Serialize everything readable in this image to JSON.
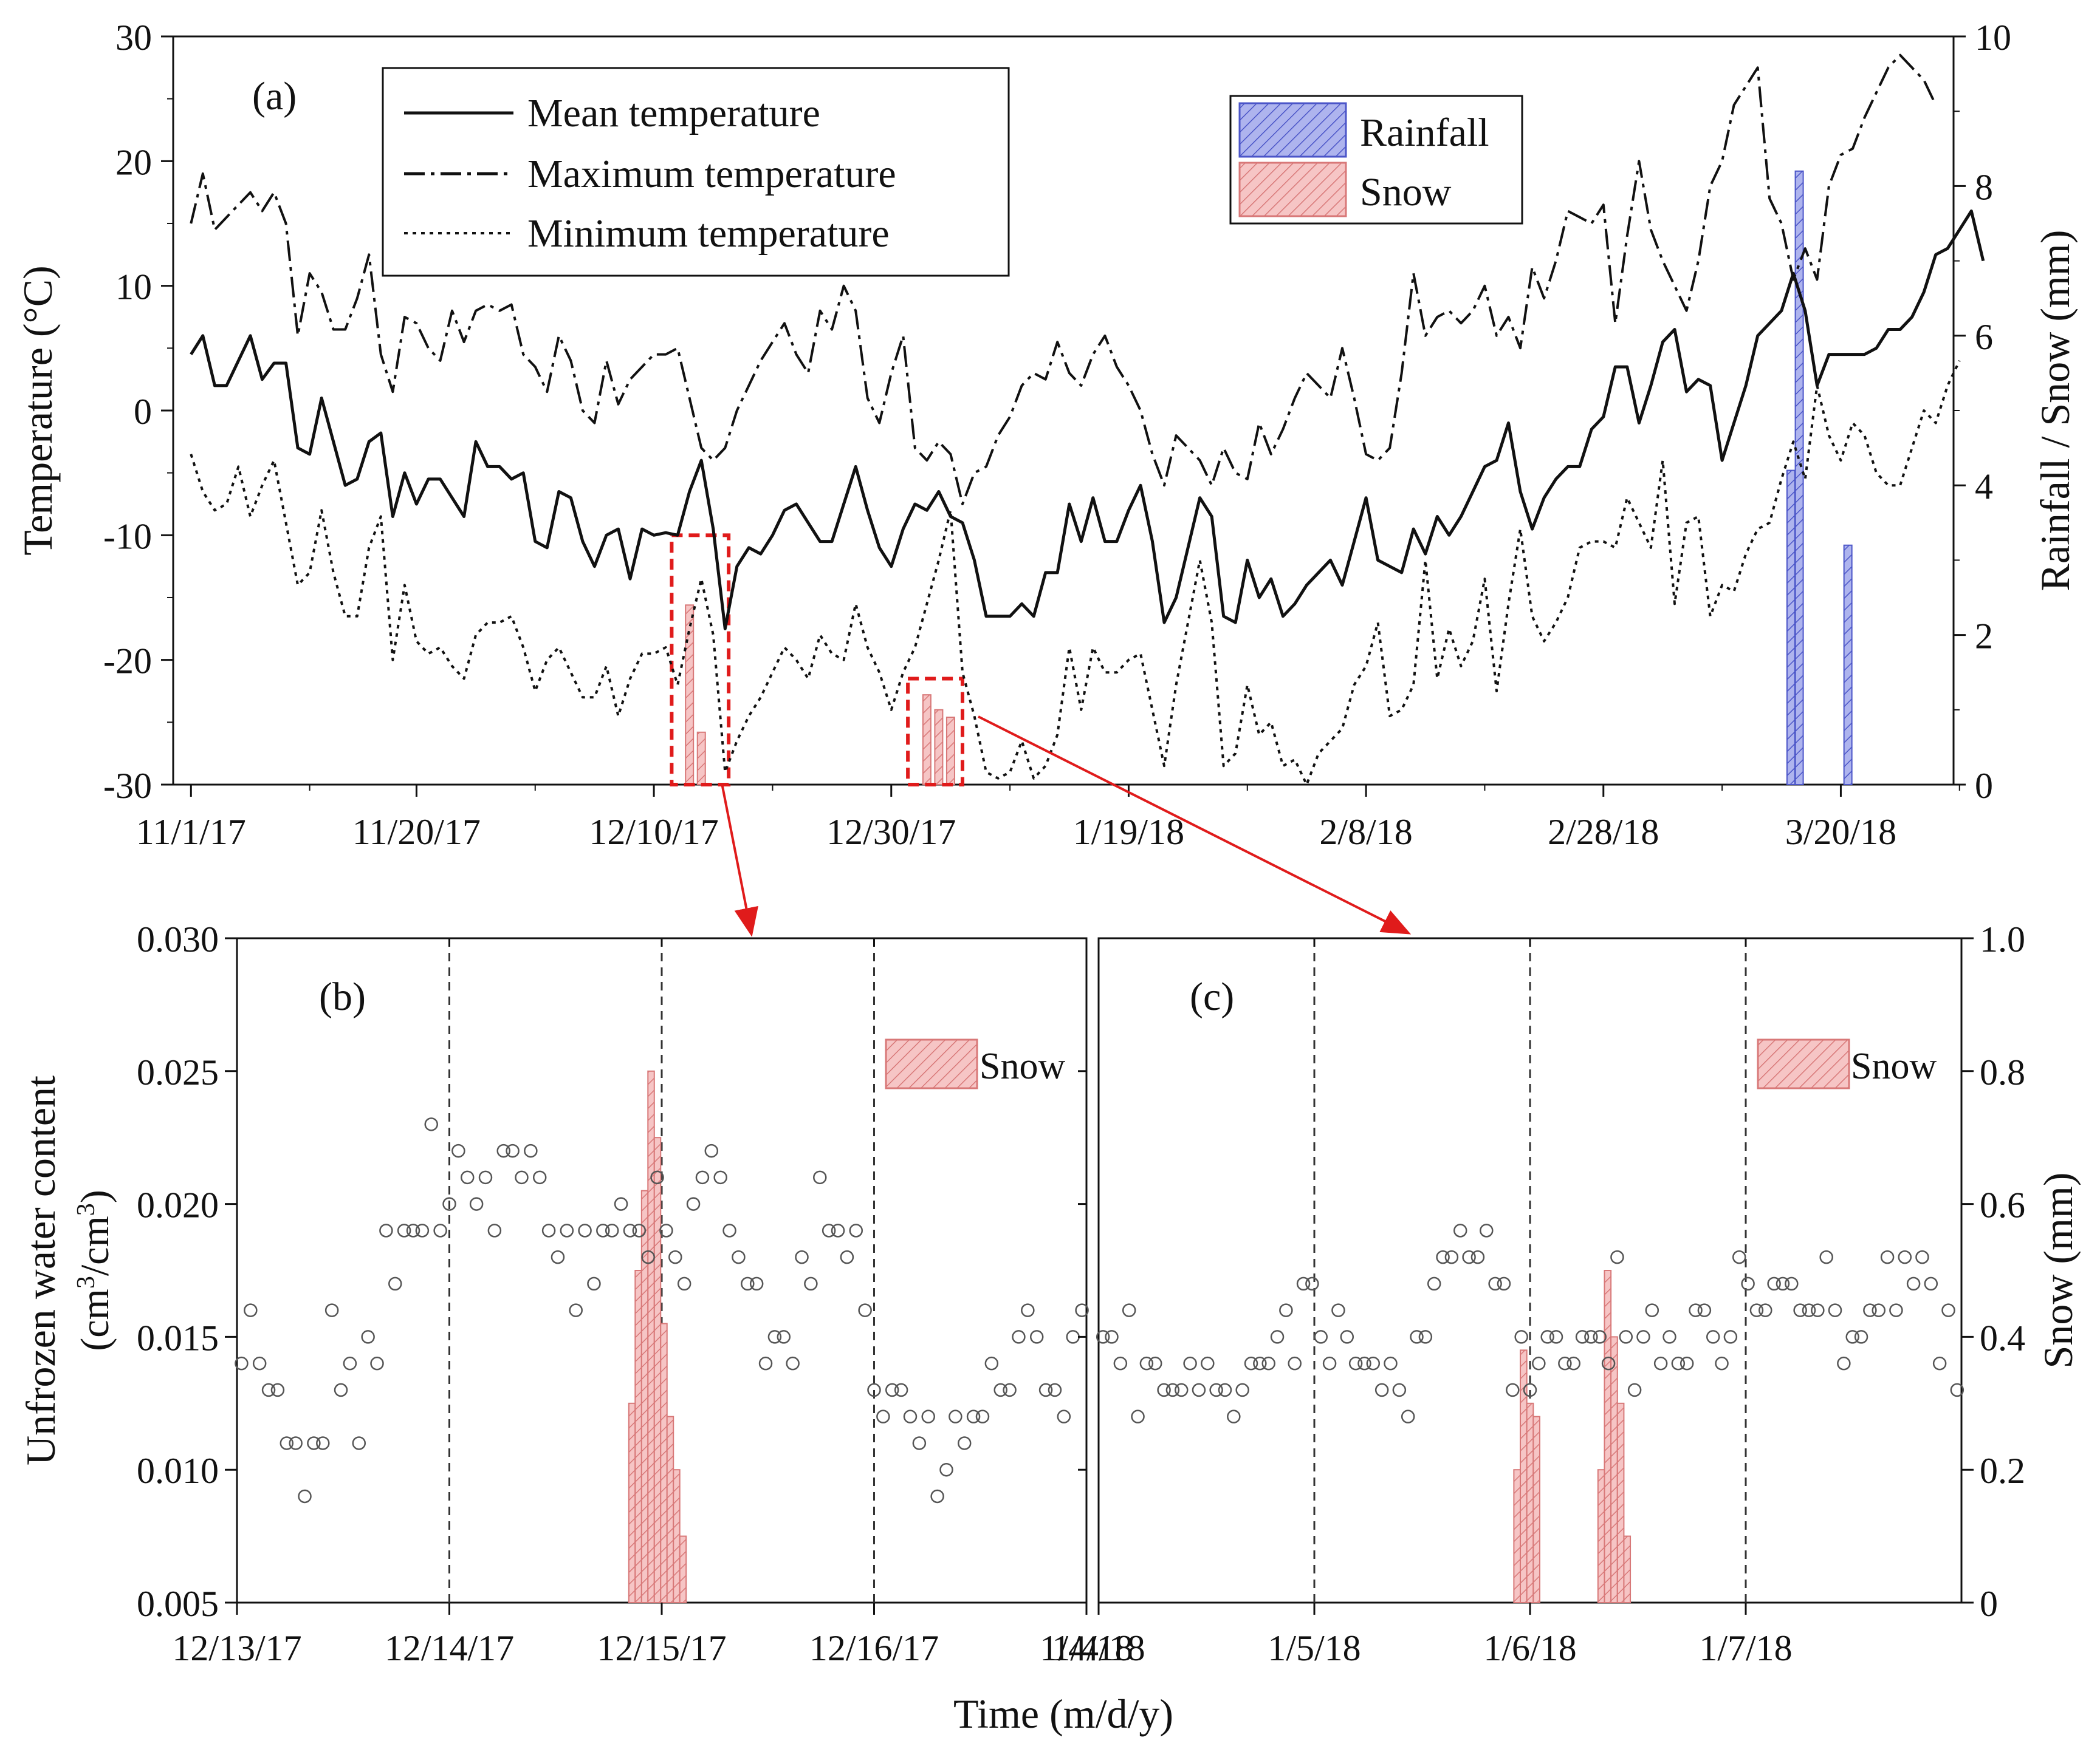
{
  "colors": {
    "axis": "#111111",
    "rain_fill": "#aeb4ee",
    "rain_stroke": "#4b55c8",
    "snow_fill": "#f6c5c5",
    "snow_stroke": "#d87878",
    "highlight": "#e01b1b",
    "marker": "#555555"
  },
  "chart_data": [
    {
      "id": "a",
      "type": "line",
      "panel_label": "(a)",
      "ylabel_left": "Temperature (°C)",
      "ylabel_right": "Rainfall / Snow (mm)",
      "ylim_left": [
        -30,
        30
      ],
      "ylim_right": [
        0,
        10
      ],
      "x_day_range": [
        0,
        149
      ],
      "x_ticks": [
        {
          "day": 0,
          "label": "11/1/17"
        },
        {
          "day": 19,
          "label": "11/20/17"
        },
        {
          "day": 39,
          "label": "12/10/17"
        },
        {
          "day": 59,
          "label": "12/30/17"
        },
        {
          "day": 79,
          "label": "1/19/18"
        },
        {
          "day": 99,
          "label": "2/8/18"
        },
        {
          "day": 119,
          "label": "2/28/18"
        },
        {
          "day": 139,
          "label": "3/20/18"
        }
      ],
      "y_ticks_left": [
        "-30",
        "-20",
        "-10",
        "0",
        "10",
        "20",
        "30"
      ],
      "y_ticks_right": [
        "0",
        "2",
        "4",
        "6",
        "8",
        "10"
      ],
      "legend_lines": [
        {
          "label": "Mean temperature",
          "style": "solid"
        },
        {
          "label": "Maximum temperature",
          "style": "dashdot"
        },
        {
          "label": "Minimum temperature",
          "style": "dotted"
        }
      ],
      "legend_bars": [
        {
          "label": "Rainfall",
          "kind": "rain"
        },
        {
          "label": "Snow",
          "kind": "snow"
        }
      ],
      "series": [
        {
          "name": "Mean temperature",
          "style": "solid",
          "values": [
            4.5,
            6,
            2,
            2,
            4,
            6,
            2.5,
            3.8,
            3.8,
            -3,
            -3.5,
            1,
            -2.5,
            -6,
            -5.5,
            -2.5,
            -1.8,
            -8.5,
            -5,
            -7.5,
            -5.5,
            -5.5,
            -7,
            -8.5,
            -2.5,
            -4.5,
            -4.5,
            -5.5,
            -5,
            -10.5,
            -11,
            -6.5,
            -7,
            -10.5,
            -12.5,
            -10,
            -9.5,
            -13.5,
            -9.5,
            -10,
            -9.8,
            -10,
            -6.5,
            -4,
            -9.5,
            -17.5,
            -12.5,
            -11,
            -11.5,
            -10,
            -8,
            -7.5,
            -9,
            -10.5,
            -10.5,
            -7.5,
            -4.5,
            -8,
            -11,
            -12.5,
            -9.5,
            -7.5,
            -8,
            -6.5,
            -8.5,
            -9,
            -12,
            -16.5,
            -16.5,
            -16.5,
            -15.5,
            -16.5,
            -13,
            -13,
            -7.5,
            -10.5,
            -7,
            -10.5,
            -10.5,
            -8,
            -6,
            -10.5,
            -17,
            -15,
            -11,
            -7,
            -8.5,
            -16.5,
            -17,
            -12,
            -15,
            -13.5,
            -16.5,
            -15.5,
            -14,
            -13,
            -12,
            -14,
            -10.5,
            -7,
            -12,
            -12.5,
            -13,
            -9.5,
            -11.5,
            -8.5,
            -10,
            -8.5,
            -6.5,
            -4.5,
            -4,
            -1,
            -6.5,
            -9.5,
            -7,
            -5.5,
            -4.5,
            -4.5,
            -1.5,
            -0.5,
            3.5,
            3.5,
            -1,
            2,
            5.5,
            6.5,
            1.5,
            2.5,
            2,
            -4,
            -1,
            2,
            6,
            7,
            8,
            11,
            8,
            2,
            4.5,
            4.5,
            4.5,
            4.5,
            5,
            6.5,
            6.5,
            7.5,
            9.5,
            12.5,
            13,
            14.5,
            16,
            12
          ]
        },
        {
          "name": "Maximum temperature",
          "style": "dashdot",
          "values": [
            15,
            19,
            14.5,
            15.5,
            16.5,
            17.5,
            16,
            17.5,
            15,
            6,
            11,
            9.5,
            6.5,
            6.5,
            9,
            12.5,
            4.5,
            1.5,
            7.5,
            7,
            5,
            4,
            8,
            5.5,
            8,
            8.5,
            8,
            8.5,
            4.5,
            3.5,
            1.5,
            6,
            4,
            0,
            -1,
            4,
            0.5,
            2.5,
            3.5,
            4.5,
            4.5,
            5,
            1,
            -3,
            -4,
            -3,
            0,
            2,
            4,
            5.5,
            7,
            4.5,
            3,
            8,
            6.5,
            10,
            8,
            1,
            -1,
            3,
            6,
            -3,
            -4,
            -2.5,
            -3.5,
            -7.5,
            -5,
            -4.5,
            -2,
            -0.5,
            2,
            3,
            2.5,
            5.5,
            3,
            2,
            4.5,
            6,
            3.5,
            2,
            0,
            -3.5,
            -6,
            -2,
            -3,
            -4,
            -6,
            -3,
            -5,
            -5.5,
            -1,
            -3.5,
            -1.5,
            1,
            3,
            2,
            1,
            5,
            1,
            -3.5,
            -4,
            -3,
            3,
            11,
            6,
            7.5,
            8,
            7,
            8,
            10,
            6,
            7.5,
            5,
            11.5,
            9,
            12,
            16,
            15.5,
            15,
            16.5,
            7,
            14,
            20,
            14.5,
            12,
            10,
            8,
            12,
            18,
            20,
            24.5,
            26,
            27.5,
            17,
            15,
            10.5,
            13,
            10.5,
            18,
            20.5,
            21,
            23.5,
            25.5,
            27.5,
            28.5,
            27.5,
            26.5,
            24.5
          ]
        },
        {
          "name": "Minimum temperature",
          "style": "dotted",
          "values": [
            -3.5,
            -6.5,
            -8,
            -7.5,
            -4.5,
            -8.5,
            -6,
            -4,
            -9,
            -14,
            -13,
            -8,
            -13,
            -16.5,
            -16.5,
            -11,
            -8.5,
            -20,
            -14,
            -18.5,
            -19.5,
            -19,
            -20.5,
            -21.5,
            -18,
            -17,
            -17,
            -16.5,
            -19,
            -22.5,
            -20,
            -19,
            -21,
            -23,
            -23,
            -20.5,
            -24.5,
            -21.5,
            -19.5,
            -19.5,
            -19,
            -22,
            -17.5,
            -13.5,
            -18,
            -29,
            -26.5,
            -24.5,
            -23,
            -21,
            -19,
            -20,
            -21.5,
            -18,
            -19.5,
            -20,
            -15.5,
            -19,
            -21,
            -24,
            -21,
            -19,
            -15.5,
            -12,
            -8,
            -21,
            -24.5,
            -29,
            -29.5,
            -29,
            -26.5,
            -29.5,
            -28.5,
            -26,
            -19,
            -24,
            -19,
            -21,
            -21,
            -20,
            -19.5,
            -24,
            -28.5,
            -22,
            -17,
            -12,
            -17,
            -28.5,
            -27.5,
            -22,
            -26,
            -25,
            -28.5,
            -28,
            -30,
            -27.5,
            -26.5,
            -25.5,
            -22,
            -20.5,
            -17,
            -24.5,
            -24,
            -22,
            -12,
            -21.5,
            -17.5,
            -20.5,
            -18.5,
            -13.5,
            -22.5,
            -15.5,
            -9.5,
            -16.5,
            -18.5,
            -17,
            -15,
            -11,
            -10.5,
            -10.5,
            -11,
            -7,
            -9,
            -11,
            -4,
            -15.5,
            -9,
            -8.5,
            -16.5,
            -14,
            -14.5,
            -11.5,
            -9.5,
            -9,
            -5.5,
            -2.5,
            -5.5,
            2,
            -2,
            -4,
            -1,
            -2,
            -5,
            -6,
            -6,
            -3,
            0,
            -1,
            2,
            4
          ]
        }
      ],
      "bars": [
        {
          "kind": "snow",
          "day": 42,
          "value": 2.4
        },
        {
          "kind": "snow",
          "day": 43,
          "value": 0.7
        },
        {
          "kind": "snow",
          "day": 62,
          "value": 1.2
        },
        {
          "kind": "snow",
          "day": 63,
          "value": 1.0
        },
        {
          "kind": "snow",
          "day": 64,
          "value": 0.9
        },
        {
          "kind": "rain",
          "day": 134.8,
          "value": 4.2
        },
        {
          "kind": "rain",
          "day": 135.5,
          "value": 8.2
        },
        {
          "kind": "rain",
          "day": 139.6,
          "value": 3.2
        }
      ],
      "highlights": [
        {
          "day_from": 40.5,
          "day_to": 45.3,
          "temp_top": -10
        },
        {
          "day_from": 60.4,
          "day_to": 65,
          "temp_top": -21.5
        }
      ]
    },
    {
      "id": "b",
      "type": "scatter",
      "panel_label": "(b)",
      "legend": "Snow",
      "ylim_left": [
        0.005,
        0.03
      ],
      "ylim_right": [
        0,
        1.0
      ],
      "x_range": [
        0,
        4
      ],
      "x_ticks": [
        {
          "pos": 0,
          "label": "12/13/17"
        },
        {
          "pos": 1,
          "label": "12/14/17"
        },
        {
          "pos": 2,
          "label": "12/15/17"
        },
        {
          "pos": 3,
          "label": "12/16/17"
        },
        {
          "pos": 4,
          "label": "1/4/18"
        }
      ],
      "y_ticks_left": [
        "0.005",
        "0.010",
        "0.015",
        "0.020",
        "0.025",
        "0.030"
      ],
      "y_ticks_right": [
        "0",
        "0.2",
        "0.4",
        "0.6",
        "0.8",
        "1.0"
      ],
      "vlines": [
        1,
        2,
        3
      ],
      "points": [
        0.014,
        0.016,
        0.014,
        0.013,
        0.013,
        0.011,
        0.011,
        0.009,
        0.011,
        0.011,
        0.016,
        0.013,
        0.014,
        0.011,
        0.015,
        0.014,
        0.019,
        0.017,
        0.019,
        0.019,
        0.019,
        0.023,
        0.019,
        0.02,
        0.022,
        0.021,
        0.02,
        0.021,
        0.019,
        0.022,
        0.022,
        0.021,
        0.022,
        0.021,
        0.019,
        0.018,
        0.019,
        0.016,
        0.019,
        0.017,
        0.019,
        0.019,
        0.02,
        0.019,
        0.019,
        0.018,
        0.021,
        0.019,
        0.018,
        0.017,
        0.02,
        0.021,
        0.022,
        0.021,
        0.019,
        0.018,
        0.017,
        0.017,
        0.014,
        0.015,
        0.015,
        0.014,
        0.018,
        0.017,
        0.021,
        0.019,
        0.019,
        0.018,
        0.019,
        0.016,
        0.013,
        0.012,
        0.013,
        0.013,
        0.012,
        0.011,
        0.012,
        0.009,
        0.01,
        0.012,
        0.011,
        0.012,
        0.012,
        0.014,
        0.013,
        0.013,
        0.015,
        0.016,
        0.015,
        0.013,
        0.013,
        0.012,
        0.015,
        0.016
      ],
      "bars": [
        {
          "x": 1.86,
          "value": 0.3
        },
        {
          "x": 1.89,
          "value": 0.5
        },
        {
          "x": 1.92,
          "value": 0.62
        },
        {
          "x": 1.95,
          "value": 0.8
        },
        {
          "x": 1.98,
          "value": 0.7
        },
        {
          "x": 2.01,
          "value": 0.42
        },
        {
          "x": 2.04,
          "value": 0.28
        },
        {
          "x": 2.07,
          "value": 0.2
        },
        {
          "x": 2.1,
          "value": 0.1
        }
      ]
    },
    {
      "id": "c",
      "type": "scatter",
      "panel_label": "(c)",
      "legend": "Snow",
      "ylim_left": [
        0.005,
        0.03
      ],
      "ylim_right": [
        0,
        1.0
      ],
      "x_range": [
        0,
        4
      ],
      "x_ticks": [
        {
          "pos": 0,
          "label": "1/4/18"
        },
        {
          "pos": 1,
          "label": "1/5/18"
        },
        {
          "pos": 2,
          "label": "1/6/18"
        },
        {
          "pos": 3,
          "label": "1/7/18"
        }
      ],
      "y_ticks_left": [],
      "y_ticks_right": [
        "0",
        "0.2",
        "0.4",
        "0.6",
        "0.8",
        "1.0"
      ],
      "vlines": [
        1,
        2,
        3
      ],
      "points": [
        0.015,
        0.015,
        0.014,
        0.016,
        0.012,
        0.014,
        0.014,
        0.013,
        0.013,
        0.013,
        0.014,
        0.013,
        0.014,
        0.013,
        0.013,
        0.012,
        0.013,
        0.014,
        0.014,
        0.014,
        0.015,
        0.016,
        0.014,
        0.017,
        0.017,
        0.015,
        0.014,
        0.016,
        0.015,
        0.014,
        0.014,
        0.014,
        0.013,
        0.014,
        0.013,
        0.012,
        0.015,
        0.015,
        0.017,
        0.018,
        0.018,
        0.019,
        0.018,
        0.018,
        0.019,
        0.017,
        0.017,
        0.013,
        0.015,
        0.013,
        0.014,
        0.015,
        0.015,
        0.014,
        0.014,
        0.015,
        0.015,
        0.015,
        0.014,
        0.018,
        0.015,
        0.013,
        0.015,
        0.016,
        0.014,
        0.015,
        0.014,
        0.014,
        0.016,
        0.016,
        0.015,
        0.014,
        0.015,
        0.018,
        0.017,
        0.016,
        0.016,
        0.017,
        0.017,
        0.017,
        0.016,
        0.016,
        0.016,
        0.018,
        0.016,
        0.014,
        0.015,
        0.015,
        0.016,
        0.016,
        0.018,
        0.016,
        0.018,
        0.017,
        0.018,
        0.017,
        0.014,
        0.016,
        0.013
      ],
      "bars": [
        {
          "x": 1.94,
          "value": 0.2
        },
        {
          "x": 1.97,
          "value": 0.38
        },
        {
          "x": 2.0,
          "value": 0.3
        },
        {
          "x": 2.03,
          "value": 0.28
        },
        {
          "x": 2.33,
          "value": 0.2
        },
        {
          "x": 2.36,
          "value": 0.5
        },
        {
          "x": 2.39,
          "value": 0.4
        },
        {
          "x": 2.42,
          "value": 0.3
        },
        {
          "x": 2.45,
          "value": 0.1
        }
      ]
    }
  ],
  "shared": {
    "ylabel_left_bottom_1": "Unfrozen water content",
    "ylabel_left_bottom_2a": "(cm",
    "ylabel_left_bottom_sup1": "3",
    "ylabel_left_bottom_2b": "/cm",
    "ylabel_left_bottom_sup2": "3",
    "ylabel_left_bottom_2c": ")",
    "ylabel_right_bottom": "Snow (mm)",
    "xlabel": "Time (m/d/y)"
  }
}
